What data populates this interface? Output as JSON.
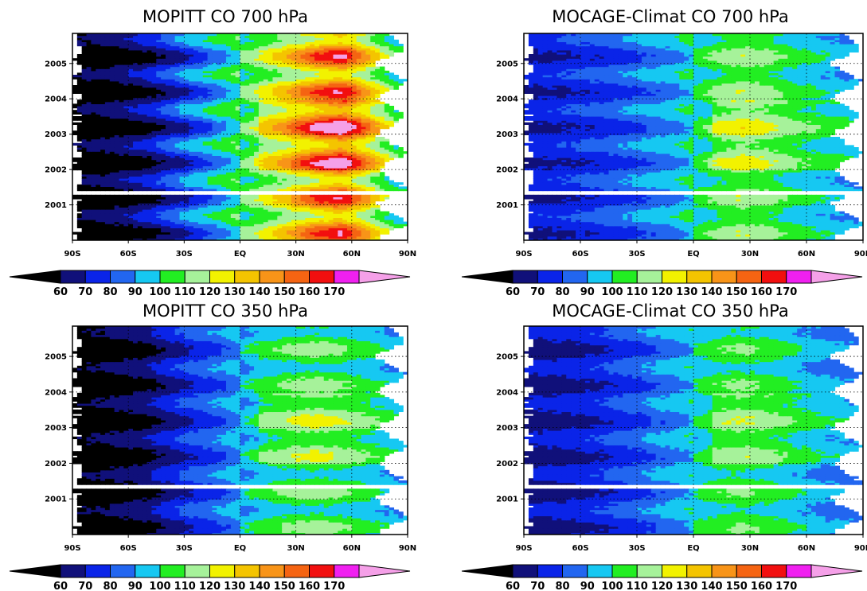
{
  "chart_data": [
    {
      "type": "heatmap",
      "title": "MOPITT CO 700 hPa",
      "x_tick_labels": [
        "90S",
        "60S",
        "30S",
        "EQ",
        "30N",
        "60N",
        "90N"
      ],
      "y_tick_labels": [
        "2001",
        "2002",
        "2003",
        "2004",
        "2005"
      ],
      "xlim": [
        -90,
        90
      ],
      "ylim": [
        2000.0,
        2005.85
      ],
      "x_ticks": [
        -90,
        -60,
        -30,
        0,
        30,
        60,
        90
      ],
      "y_ticks": [
        2001,
        2002,
        2003,
        2004,
        2005
      ],
      "grid": true,
      "gap_years": [
        [
          2001.3,
          2001.4
        ]
      ],
      "profile": {
        "lat": [
          -90,
          -70,
          -50,
          -30,
          -10,
          0,
          10,
          25,
          40,
          55,
          70,
          85
        ],
        "base": [
          55,
          58,
          65,
          80,
          95,
          104,
          112,
          125,
          140,
          150,
          125,
          100
        ],
        "seasonal_amplitude": [
          5,
          7,
          10,
          14,
          10,
          8,
          10,
          14,
          22,
          22,
          15,
          8
        ]
      },
      "colorbar": {
        "levels": [
          60,
          70,
          80,
          90,
          100,
          110,
          120,
          130,
          140,
          150,
          160,
          170
        ],
        "extend": "both"
      }
    },
    {
      "type": "heatmap",
      "title": "MOCAGE-Climat CO  700 hPa",
      "x_tick_labels": [
        "90S",
        "60S",
        "30S",
        "EQ",
        "30N",
        "60N",
        "90N"
      ],
      "y_tick_labels": [
        "2001",
        "2002",
        "2003",
        "2004",
        "2005"
      ],
      "xlim": [
        -90,
        90
      ],
      "ylim": [
        2000.0,
        2005.85
      ],
      "x_ticks": [
        -90,
        -60,
        -30,
        0,
        30,
        60,
        90
      ],
      "y_ticks": [
        2001,
        2002,
        2003,
        2004,
        2005
      ],
      "grid": true,
      "gap_years": [
        [
          2001.3,
          2001.4
        ]
      ],
      "profile": {
        "lat": [
          -90,
          -70,
          -50,
          -30,
          -10,
          0,
          10,
          25,
          40,
          55,
          70,
          85
        ],
        "base": [
          72,
          74,
          78,
          85,
          92,
          98,
          105,
          112,
          108,
          100,
          95,
          92
        ],
        "seasonal_amplitude": [
          5,
          6,
          7,
          8,
          7,
          6,
          8,
          8,
          7,
          6,
          5,
          5
        ]
      },
      "colorbar": {
        "levels": [
          60,
          70,
          80,
          90,
          100,
          110,
          120,
          130,
          140,
          150,
          160,
          170
        ],
        "extend": "both"
      }
    },
    {
      "type": "heatmap",
      "title": "MOPITT CO 350 hPa",
      "x_tick_labels": [
        "90S",
        "60S",
        "30S",
        "EQ",
        "30N",
        "60N",
        "90N"
      ],
      "y_tick_labels": [
        "2001",
        "2002",
        "2003",
        "2004",
        "2005"
      ],
      "xlim": [
        -90,
        90
      ],
      "ylim": [
        2000.0,
        2005.85
      ],
      "x_ticks": [
        -90,
        -60,
        -30,
        0,
        30,
        60,
        90
      ],
      "y_ticks": [
        2001,
        2002,
        2003,
        2004,
        2005
      ],
      "grid": true,
      "gap_years": [
        [
          2001.3,
          2001.4
        ]
      ],
      "profile": {
        "lat": [
          -90,
          -70,
          -50,
          -30,
          -10,
          0,
          10,
          25,
          40,
          55,
          70,
          85
        ],
        "base": [
          55,
          57,
          62,
          75,
          85,
          92,
          98,
          104,
          108,
          104,
          98,
          92
        ],
        "seasonal_amplitude": [
          4,
          5,
          7,
          8,
          7,
          6,
          7,
          8,
          10,
          8,
          6,
          5
        ]
      },
      "colorbar": {
        "levels": [
          60,
          70,
          80,
          90,
          100,
          110,
          120,
          130,
          140,
          150,
          160,
          170
        ],
        "extend": "both"
      }
    },
    {
      "type": "heatmap",
      "title": "MOCAGE-Climat CO  350 hPa",
      "x_tick_labels": [
        "90S",
        "60S",
        "30S",
        "EQ",
        "30N",
        "60N",
        "90N"
      ],
      "y_tick_labels": [
        "2001",
        "2002",
        "2003",
        "2004",
        "2005"
      ],
      "xlim": [
        -90,
        90
      ],
      "ylim": [
        2000.0,
        2005.85
      ],
      "x_ticks": [
        -90,
        -60,
        -30,
        0,
        30,
        60,
        90
      ],
      "y_ticks": [
        2001,
        2002,
        2003,
        2004,
        2005
      ],
      "grid": true,
      "gap_years": [
        [
          2001.3,
          2001.4
        ]
      ],
      "profile": {
        "lat": [
          -90,
          -70,
          -50,
          -30,
          -10,
          0,
          10,
          25,
          40,
          55,
          70,
          85
        ],
        "base": [
          68,
          70,
          74,
          82,
          90,
          96,
          102,
          106,
          102,
          96,
          90,
          88
        ],
        "seasonal_amplitude": [
          4,
          5,
          6,
          7,
          6,
          5,
          6,
          7,
          6,
          5,
          4,
          4
        ]
      },
      "colorbar": {
        "levels": [
          60,
          70,
          80,
          90,
          100,
          110,
          120,
          130,
          140,
          150,
          160,
          170
        ],
        "extend": "both"
      }
    }
  ],
  "colors": {
    "under": "#000000",
    "bins": [
      "#10107a",
      "#0a24e8",
      "#2266f0",
      "#16c8f2",
      "#22ee22",
      "#a6f29a",
      "#f2f200",
      "#f4c400",
      "#f89418",
      "#f56412",
      "#f20f0f",
      "#f020f0"
    ],
    "over": "#f5a0e8",
    "grid_line": "#000000",
    "frame": "#000000"
  }
}
